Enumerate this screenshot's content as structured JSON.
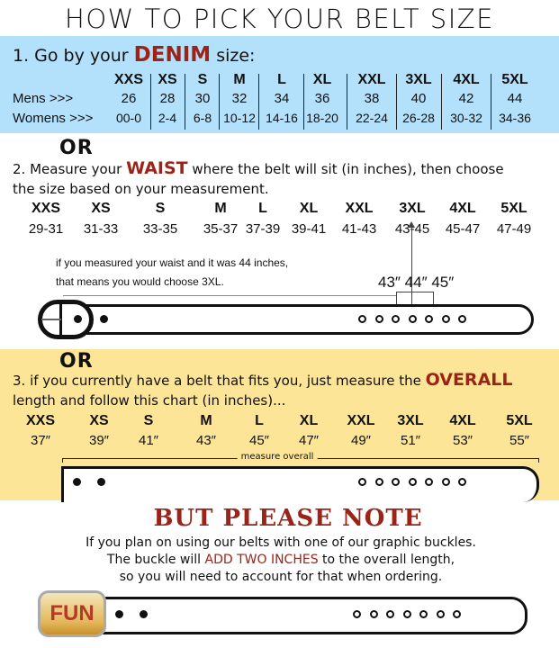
{
  "title": "HOW TO PICK YOUR BELT SIZE",
  "s1": {
    "pre": "1. Go by your ",
    "em": "DENIM",
    "post": " size:",
    "sizes": [
      "XXS",
      "XS",
      "S",
      "M",
      "L",
      "XL",
      "XXL",
      "3XL",
      "4XL",
      "5XL"
    ],
    "mens_label": "Mens >>>",
    "mens": [
      "26",
      "28",
      "30",
      "32",
      "34",
      "36",
      "38",
      "40",
      "42",
      "44"
    ],
    "womens_label": "Womens >>>",
    "womens": [
      "00-0",
      "2-4",
      "6-8",
      "10-12",
      "14-16",
      "18-20",
      "22-24",
      "26-28",
      "30-32",
      "34-36"
    ]
  },
  "or": "OR",
  "s2": {
    "pre": "2. Measure your ",
    "em": "WAIST",
    "post": " where the belt will sit (in inches), then choose",
    "line2": "the size based on your measurement.",
    "sizes": [
      "XXS",
      "XS",
      "S",
      "M",
      "L",
      "XL",
      "XXL",
      "3XL",
      "4XL",
      "5XL"
    ],
    "ranges": [
      "29-31",
      "31-33",
      "33-35",
      "35-37",
      "37-39",
      "39-41",
      "41-43",
      "43-45",
      "45-47",
      "47-49"
    ],
    "note1": "if you measured your waist and it was 44 inches,",
    "note2": "that means you would choose 3XL.",
    "marks": [
      "43″",
      "44″",
      "45″"
    ]
  },
  "s3": {
    "pre": "3. if you currently have a belt that fits you, just measure the ",
    "em": "OVERALL",
    "line2": "length and follow this chart (in inches)...",
    "sizes": [
      "XXS",
      "XS",
      "S",
      "M",
      "L",
      "XL",
      "XXL",
      "3XL",
      "4XL",
      "5XL"
    ],
    "lengths": [
      "37″",
      "39″",
      "41″",
      "43″",
      "45″",
      "47″",
      "49″",
      "51″",
      "53″",
      "55″"
    ],
    "measure": "measure overall"
  },
  "s4": {
    "heading": "BUT PLEASE NOTE",
    "l1": "If you plan on using our belts with one of our graphic buckles.",
    "l2pre": "The buckle will ",
    "l2em": "ADD TWO INCHES",
    "l2post": " to the overall length,",
    "l3": "so you will need to account for that when ordering.",
    "buckle_text": "FUN"
  },
  "colors": {
    "blue": "#b3e0fa",
    "yellow": "#fde597",
    "accent": "#9b2418"
  }
}
